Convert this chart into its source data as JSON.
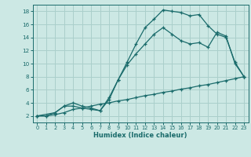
{
  "xlabel": "Humidex (Indice chaleur)",
  "background_color": "#cce8e4",
  "grid_color": "#aacfcb",
  "line_color": "#1a6b6b",
  "xlim": [
    -0.5,
    23.5
  ],
  "ylim": [
    1.0,
    19.0
  ],
  "xticks": [
    0,
    1,
    2,
    3,
    4,
    5,
    6,
    7,
    8,
    9,
    10,
    11,
    12,
    13,
    14,
    15,
    16,
    17,
    18,
    19,
    20,
    21,
    22,
    23
  ],
  "yticks": [
    2,
    4,
    6,
    8,
    10,
    12,
    14,
    16,
    18
  ],
  "line1_x": [
    0,
    1,
    2,
    3,
    4,
    5,
    6,
    7,
    8,
    9,
    10,
    11,
    12,
    13,
    14,
    15,
    16,
    17,
    18,
    19,
    20,
    21,
    22,
    23
  ],
  "line1_y": [
    2,
    2,
    2.5,
    3.5,
    3.5,
    3.2,
    3.0,
    2.8,
    4.8,
    7.5,
    10.2,
    13.0,
    15.5,
    16.8,
    18.2,
    18.0,
    17.8,
    17.3,
    17.5,
    15.8,
    14.5,
    14.0,
    10.2,
    8.0
  ],
  "line2_x": [
    0,
    2,
    3,
    4,
    5,
    6,
    7,
    8,
    9,
    10,
    11,
    12,
    13,
    14,
    15,
    16,
    17,
    18,
    19,
    20,
    21,
    22,
    23
  ],
  "line2_y": [
    2,
    2.5,
    3.5,
    4.0,
    3.5,
    3.2,
    2.8,
    4.5,
    7.5,
    9.8,
    11.5,
    13.0,
    14.5,
    15.5,
    14.5,
    13.5,
    13.0,
    13.2,
    12.5,
    14.8,
    14.2,
    10.0,
    8.0
  ],
  "line3_x": [
    0,
    1,
    2,
    3,
    4,
    5,
    6,
    7,
    8,
    9,
    10,
    11,
    12,
    13,
    14,
    15,
    16,
    17,
    18,
    19,
    20,
    21,
    22,
    23
  ],
  "line3_y": [
    2,
    2,
    2.2,
    2.5,
    3.0,
    3.2,
    3.5,
    3.8,
    4.0,
    4.3,
    4.5,
    4.8,
    5.1,
    5.3,
    5.6,
    5.8,
    6.1,
    6.3,
    6.6,
    6.8,
    7.1,
    7.4,
    7.7,
    8.0
  ]
}
